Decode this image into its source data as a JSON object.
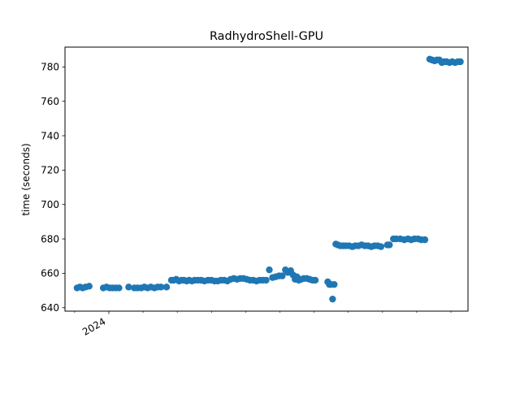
{
  "chart_data": {
    "type": "scatter",
    "title": "RadhydroShell-GPU",
    "xlabel": "",
    "ylabel": "time (seconds)",
    "x_tick_label": "2024",
    "y_ticks": [
      640,
      660,
      680,
      700,
      720,
      740,
      760,
      780
    ],
    "ylim": [
      638,
      791.5
    ],
    "xlim": [
      0,
      1
    ],
    "grid": false,
    "legend": "none",
    "marker_color": "#1f77b4",
    "series": [
      {
        "x": [
          0.03,
          0.037,
          0.044,
          0.051,
          0.06,
          0.095,
          0.103,
          0.111,
          0.118,
          0.126,
          0.134,
          0.158,
          0.172,
          0.18,
          0.189,
          0.197,
          0.205,
          0.213,
          0.222,
          0.23,
          0.238,
          0.252,
          0.264,
          0.27,
          0.276,
          0.283,
          0.289,
          0.295,
          0.302,
          0.308,
          0.315,
          0.322,
          0.33,
          0.338,
          0.346,
          0.355,
          0.363,
          0.371,
          0.379,
          0.387,
          0.395,
          0.403,
          0.411,
          0.419,
          0.427,
          0.435,
          0.443,
          0.451,
          0.459,
          0.467,
          0.475,
          0.483,
          0.491,
          0.499,
          0.507,
          0.515,
          0.523,
          0.531,
          0.539,
          0.547,
          0.553,
          0.56,
          0.566,
          0.571,
          0.575,
          0.58,
          0.586,
          0.593,
          0.6,
          0.607,
          0.614,
          0.621,
          0.652,
          0.656,
          0.66,
          0.664,
          0.668,
          0.672,
          0.677,
          0.683,
          0.69,
          0.697,
          0.705,
          0.713,
          0.72,
          0.728,
          0.736,
          0.744,
          0.752,
          0.76,
          0.768,
          0.776,
          0.784,
          0.8,
          0.805,
          0.815,
          0.822,
          0.832,
          0.842,
          0.851,
          0.859,
          0.867,
          0.876,
          0.884,
          0.893,
          0.905,
          0.911,
          0.917,
          0.923,
          0.929,
          0.935,
          0.941,
          0.947,
          0.954,
          0.961,
          0.968,
          0.975,
          0.981
        ],
        "y": [
          651.5,
          652,
          651.5,
          652,
          652.5,
          651.5,
          652,
          651.5,
          651.5,
          651.5,
          651.5,
          652,
          651.5,
          651.5,
          651.5,
          652,
          651.5,
          652,
          651.5,
          652,
          652,
          652,
          656,
          656,
          656.5,
          655.5,
          656,
          656,
          655.5,
          656,
          655.5,
          656,
          656,
          656,
          655.5,
          656,
          656,
          655.5,
          655.5,
          656,
          656,
          655.5,
          656.5,
          657,
          656.5,
          657,
          657,
          656.5,
          656,
          656,
          655.5,
          656,
          656,
          656,
          662,
          657.5,
          658,
          658.5,
          658.5,
          662,
          660.5,
          661.5,
          659,
          656.5,
          658,
          656,
          656.5,
          657,
          657,
          656.5,
          656,
          656,
          655,
          653.5,
          653.5,
          645,
          653.5,
          677,
          676.5,
          676,
          676,
          676,
          676,
          675.5,
          676,
          676,
          676.5,
          676,
          676,
          675.5,
          676,
          676,
          675.5,
          676.5,
          676.5,
          680,
          680,
          680,
          679.5,
          680,
          679.5,
          680,
          680,
          679.5,
          679.5,
          784.5,
          784,
          783.5,
          784,
          784,
          782.5,
          783,
          783,
          782.5,
          783,
          782.5,
          783,
          783
        ]
      }
    ]
  }
}
